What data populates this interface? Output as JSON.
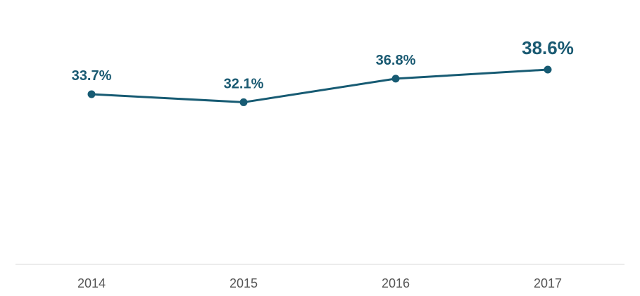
{
  "chart_data": {
    "type": "line",
    "categories": [
      "2014",
      "2015",
      "2016",
      "2017"
    ],
    "series": [
      {
        "values": [
          33.7,
          32.1,
          36.8,
          38.6
        ]
      }
    ],
    "data_labels": [
      "33.7%",
      "32.1%",
      "36.8%",
      "38.6%"
    ],
    "title": "",
    "xlabel": "",
    "ylabel": "",
    "highlight_last_label": true,
    "grid": false,
    "legend": "none"
  },
  "colors": {
    "line": "#175b73",
    "label": "#1a5a72",
    "axis": "#d9d9d9",
    "tick": "#555555"
  }
}
